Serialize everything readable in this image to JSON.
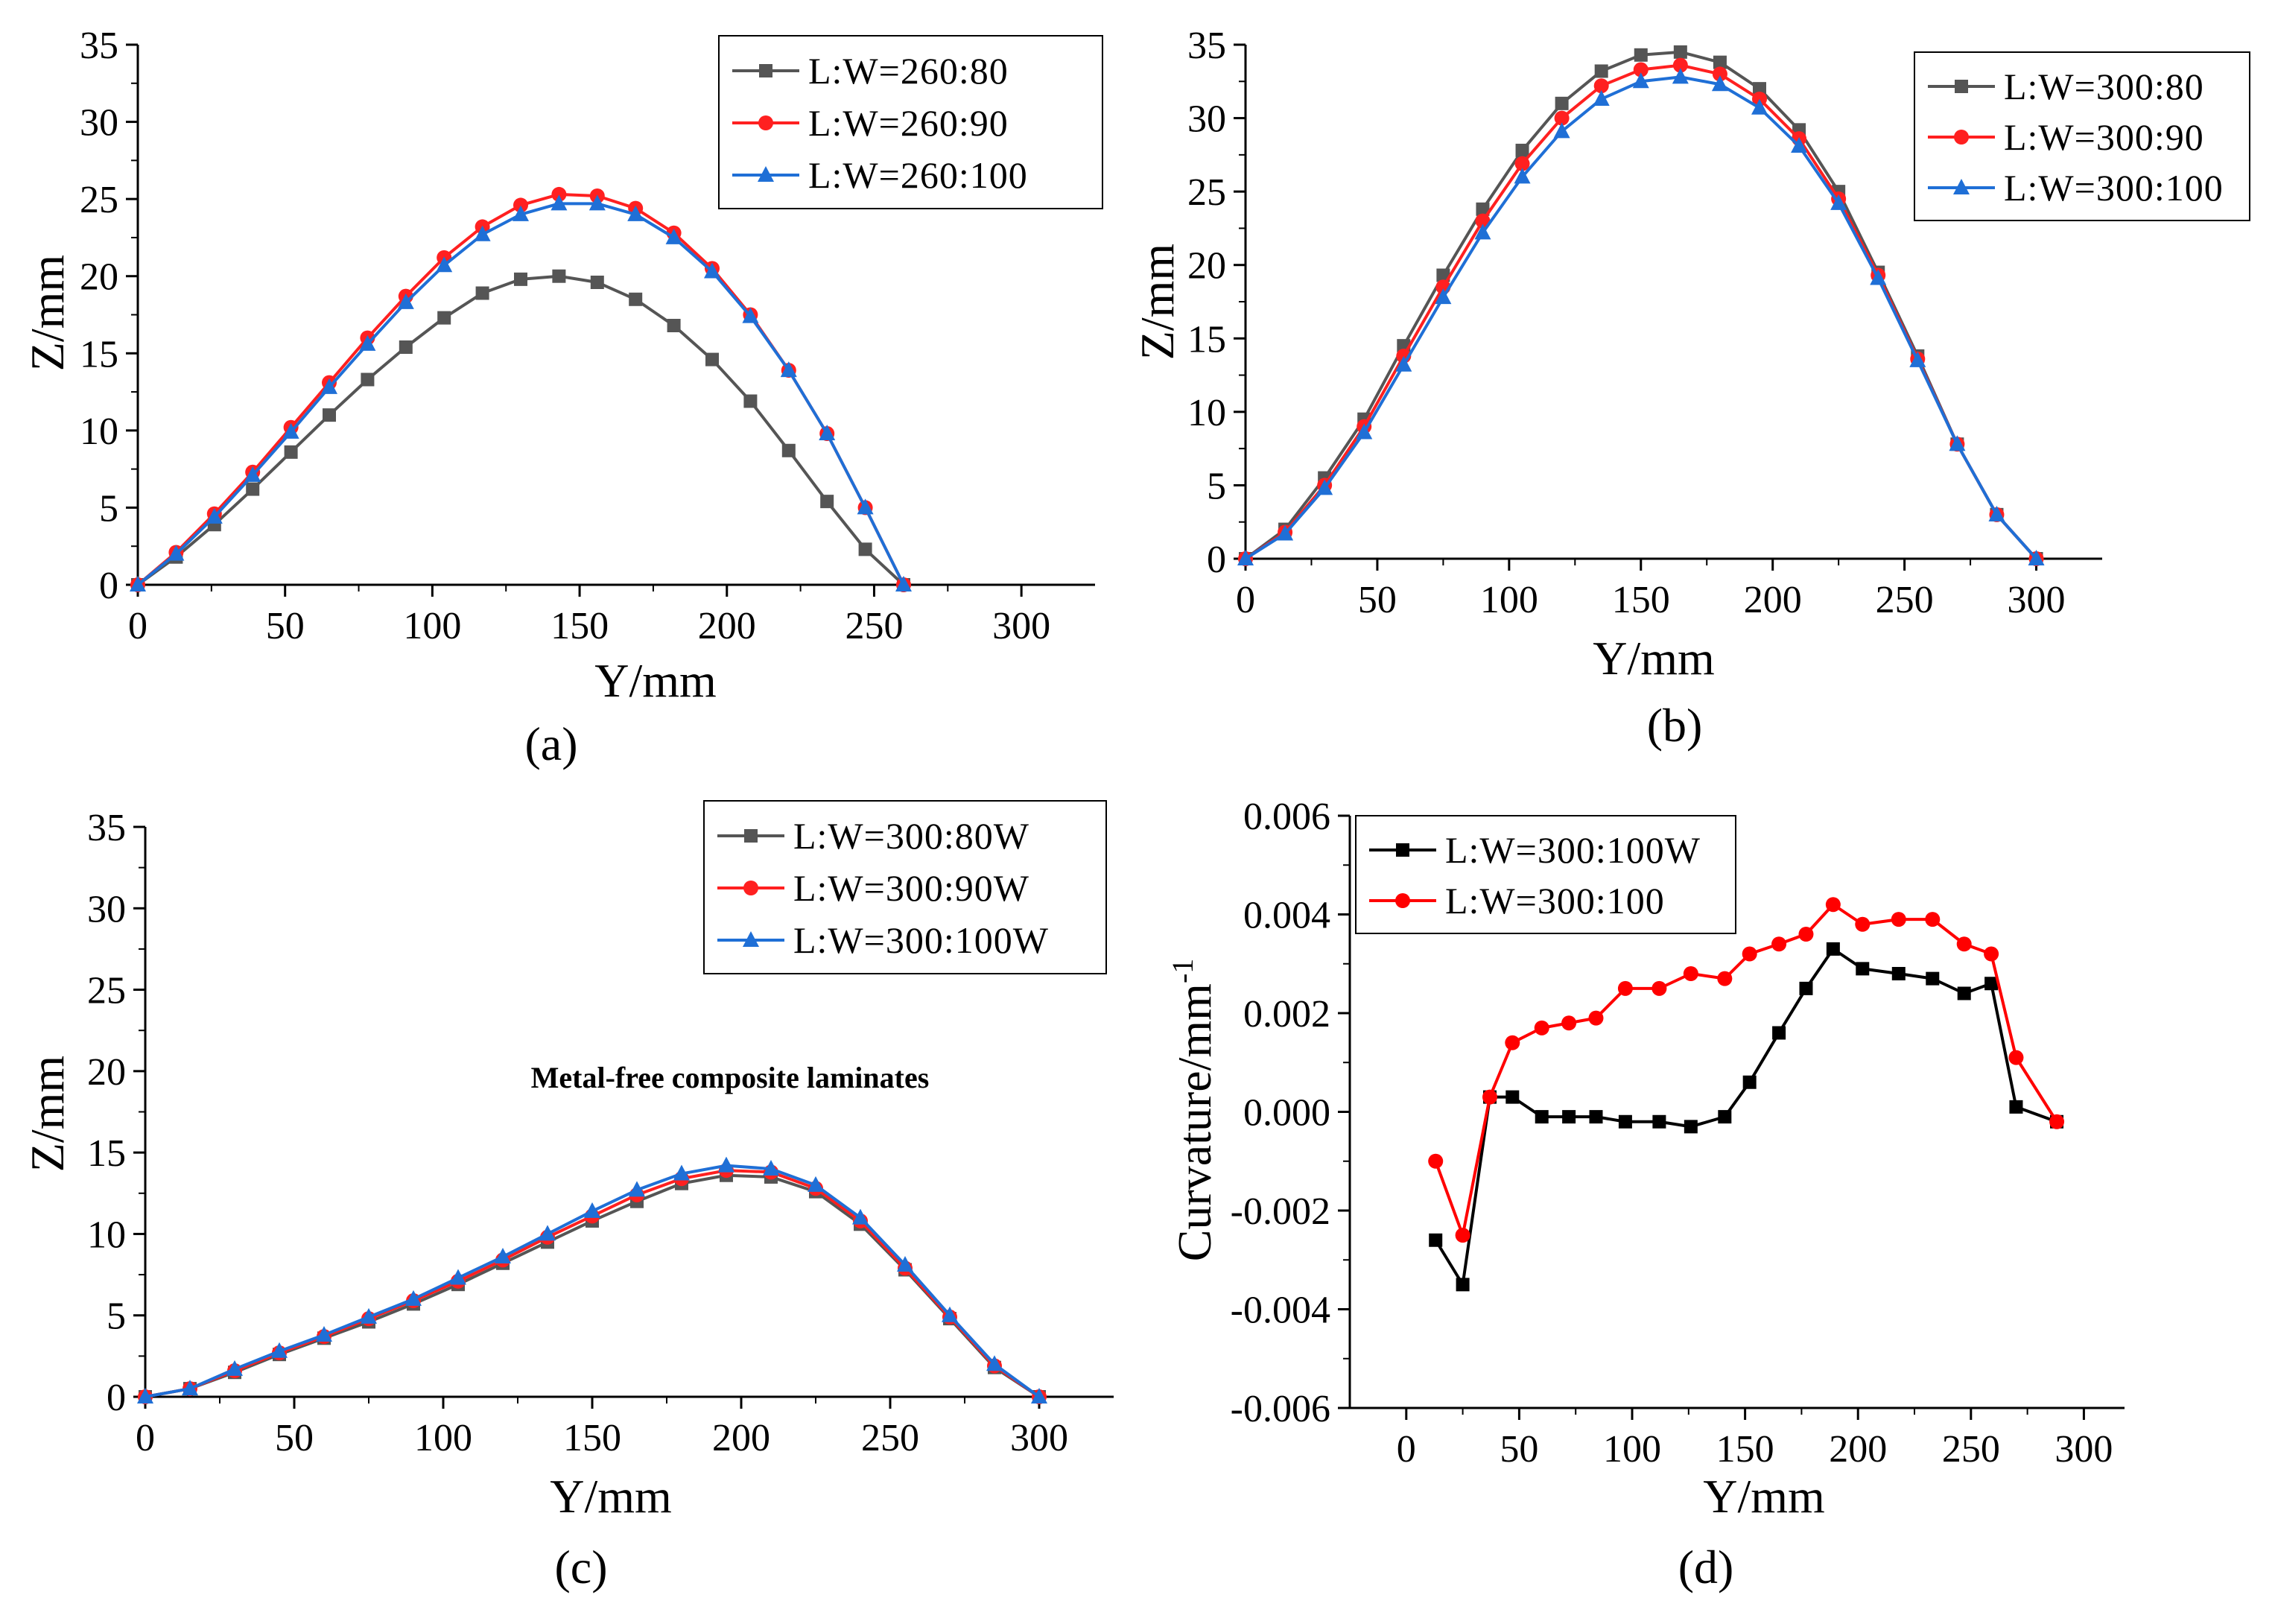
{
  "figure": {
    "panels": [
      {
        "caption": "(a)"
      },
      {
        "caption": "(b)"
      },
      {
        "caption": "(c)"
      },
      {
        "caption": "(d)"
      }
    ]
  },
  "chart_data": [
    {
      "type": "line",
      "caption": "(a)",
      "xlabel": "Y/mm",
      "ylabel": "Z/mm",
      "xlim": [
        0,
        325
      ],
      "ylim": [
        0,
        35
      ],
      "xticks": [
        0,
        50,
        100,
        150,
        200,
        250,
        300
      ],
      "yticks": [
        0,
        5,
        10,
        15,
        20,
        25,
        30,
        35
      ],
      "legend_position": "top-right",
      "series": [
        {
          "name": "L:W=260:80",
          "color": "#555555",
          "marker": "square",
          "x": [
            0,
            13,
            26,
            39,
            52,
            65,
            78,
            91,
            104,
            117,
            130,
            143,
            156,
            169,
            182,
            195,
            208,
            221,
            234,
            247,
            260
          ],
          "y": [
            0,
            1.8,
            3.9,
            6.2,
            8.6,
            11.0,
            13.3,
            15.4,
            17.3,
            18.9,
            19.8,
            20.0,
            19.6,
            18.5,
            16.8,
            14.6,
            11.9,
            8.7,
            5.4,
            2.3,
            0
          ]
        },
        {
          "name": "L:W=260:90",
          "color": "#ff2020",
          "marker": "circle",
          "x": [
            0,
            13,
            26,
            39,
            52,
            65,
            78,
            91,
            104,
            117,
            130,
            143,
            156,
            169,
            182,
            195,
            208,
            221,
            234,
            247,
            260
          ],
          "y": [
            0,
            2.1,
            4.6,
            7.3,
            10.2,
            13.1,
            16.0,
            18.7,
            21.2,
            23.2,
            24.6,
            25.3,
            25.2,
            24.4,
            22.8,
            20.5,
            17.5,
            13.9,
            9.8,
            5.0,
            0
          ]
        },
        {
          "name": "L:W=260:100",
          "color": "#1f6fd6",
          "marker": "triangle",
          "x": [
            0,
            13,
            26,
            39,
            52,
            65,
            78,
            91,
            104,
            117,
            130,
            143,
            156,
            169,
            182,
            195,
            208,
            221,
            234,
            247,
            260
          ],
          "y": [
            0,
            2.0,
            4.4,
            7.1,
            9.9,
            12.8,
            15.6,
            18.3,
            20.7,
            22.7,
            24.0,
            24.7,
            24.7,
            24.0,
            22.5,
            20.3,
            17.4,
            13.9,
            9.8,
            5.0,
            0
          ]
        }
      ]
    },
    {
      "type": "line",
      "caption": "(b)",
      "xlabel": "Y/mm",
      "ylabel": "Z/mm",
      "xlim": [
        0,
        325
      ],
      "ylim": [
        0,
        35
      ],
      "xticks": [
        0,
        50,
        100,
        150,
        200,
        250,
        300
      ],
      "yticks": [
        0,
        5,
        10,
        15,
        20,
        25,
        30,
        35
      ],
      "legend_position": "top-right",
      "series": [
        {
          "name": "L:W=300:80",
          "color": "#555555",
          "marker": "square",
          "x": [
            0,
            15,
            30,
            45,
            60,
            75,
            90,
            105,
            120,
            135,
            150,
            165,
            180,
            195,
            210,
            225,
            240,
            255,
            270,
            285,
            300
          ],
          "y": [
            0,
            2.0,
            5.5,
            9.5,
            14.5,
            19.3,
            23.8,
            27.8,
            31.0,
            33.2,
            34.3,
            34.5,
            33.8,
            32.0,
            29.2,
            25.0,
            19.5,
            13.8,
            7.8,
            3.0,
            0
          ]
        },
        {
          "name": "L:W=300:90",
          "color": "#ff2020",
          "marker": "circle",
          "x": [
            0,
            15,
            30,
            45,
            60,
            75,
            90,
            105,
            120,
            135,
            150,
            165,
            180,
            195,
            210,
            225,
            240,
            255,
            270,
            285,
            300
          ],
          "y": [
            0,
            1.8,
            5.0,
            9.0,
            13.8,
            18.5,
            23.0,
            26.9,
            30.0,
            32.2,
            33.3,
            33.6,
            33.0,
            31.3,
            28.6,
            24.5,
            19.3,
            13.6,
            7.8,
            3.0,
            0
          ]
        },
        {
          "name": "L:W=300:100",
          "color": "#1f6fd6",
          "marker": "triangle",
          "x": [
            0,
            15,
            30,
            45,
            60,
            75,
            90,
            105,
            120,
            135,
            150,
            165,
            180,
            195,
            210,
            225,
            240,
            255,
            270,
            285,
            300
          ],
          "y": [
            0,
            1.7,
            4.8,
            8.6,
            13.2,
            17.8,
            22.2,
            26.0,
            29.1,
            31.3,
            32.5,
            32.8,
            32.3,
            30.7,
            28.1,
            24.2,
            19.1,
            13.5,
            7.8,
            3.0,
            0
          ]
        }
      ]
    },
    {
      "type": "line",
      "caption": "(c)",
      "xlabel": "Y/mm",
      "ylabel": "Z/mm",
      "xlim": [
        0,
        325
      ],
      "ylim": [
        0,
        35
      ],
      "xticks": [
        0,
        50,
        100,
        150,
        200,
        250,
        300
      ],
      "yticks": [
        0,
        5,
        10,
        15,
        20,
        25,
        30,
        35
      ],
      "legend_position": "top-right",
      "annotation": "Metal-free composite laminates",
      "series": [
        {
          "name": "L:W=300:80W",
          "color": "#555555",
          "marker": "square",
          "x": [
            0,
            15,
            30,
            45,
            60,
            75,
            90,
            105,
            120,
            135,
            150,
            165,
            180,
            195,
            210,
            225,
            240,
            255,
            270,
            285,
            300
          ],
          "y": [
            0,
            0.5,
            1.5,
            2.6,
            3.6,
            4.6,
            5.7,
            6.9,
            8.2,
            9.5,
            10.8,
            12.0,
            13.1,
            13.6,
            13.5,
            12.6,
            10.6,
            7.8,
            4.8,
            1.8,
            0
          ]
        },
        {
          "name": "L:W=300:90W",
          "color": "#ff2020",
          "marker": "circle",
          "x": [
            0,
            15,
            30,
            45,
            60,
            75,
            90,
            105,
            120,
            135,
            150,
            165,
            180,
            195,
            210,
            225,
            240,
            255,
            270,
            285,
            300
          ],
          "y": [
            0,
            0.5,
            1.6,
            2.7,
            3.7,
            4.8,
            5.9,
            7.1,
            8.4,
            9.8,
            11.1,
            12.4,
            13.4,
            13.9,
            13.8,
            12.8,
            10.8,
            7.9,
            4.9,
            1.9,
            0
          ]
        },
        {
          "name": "L:W=300:100W",
          "color": "#1f6fd6",
          "marker": "triangle",
          "x": [
            0,
            15,
            30,
            45,
            60,
            75,
            90,
            105,
            120,
            135,
            150,
            165,
            180,
            195,
            210,
            225,
            240,
            255,
            270,
            285,
            300
          ],
          "y": [
            0,
            0.5,
            1.7,
            2.8,
            3.8,
            4.9,
            6.0,
            7.3,
            8.6,
            10.0,
            11.4,
            12.7,
            13.7,
            14.2,
            14.0,
            13.0,
            11.0,
            8.1,
            5.0,
            2.0,
            0
          ]
        }
      ]
    },
    {
      "type": "line",
      "caption": "(d)",
      "xlabel": "Y/mm",
      "ylabel": "Curvature/mm",
      "ylabel_sup": "-1",
      "xlim": [
        -25,
        318
      ],
      "ylim": [
        -0.006,
        0.006
      ],
      "xticks": [
        0,
        50,
        100,
        150,
        200,
        250,
        300
      ],
      "yticks": [
        -0.006,
        -0.004,
        -0.002,
        0.0,
        0.002,
        0.004,
        0.006
      ],
      "ytick_labels": [
        "-0.006",
        "-0.004",
        "-0.002",
        "0.000",
        "0.002",
        "0.004",
        "0.006"
      ],
      "legend_position": "top-left",
      "series": [
        {
          "name": "L:W=300:100W",
          "color": "#000000",
          "marker": "square",
          "x": [
            13,
            25,
            37,
            47,
            60,
            72,
            84,
            97,
            112,
            126,
            141,
            152,
            165,
            177,
            189,
            202,
            218,
            233,
            247,
            259,
            270,
            288
          ],
          "y": [
            -0.0026,
            -0.0035,
            0.0003,
            0.0003,
            -0.0001,
            -0.0001,
            -0.0001,
            -0.0002,
            -0.0002,
            -0.0003,
            -0.0001,
            0.0006,
            0.0016,
            0.0025,
            0.0033,
            0.0029,
            0.0028,
            0.0027,
            0.0024,
            0.0026,
            0.0001,
            -0.0002
          ]
        },
        {
          "name": "L:W=300:100",
          "color": "#ff0000",
          "marker": "circle",
          "x": [
            13,
            25,
            37,
            47,
            60,
            72,
            84,
            97,
            112,
            126,
            141,
            152,
            165,
            177,
            189,
            202,
            218,
            233,
            247,
            259,
            270,
            288
          ],
          "y": [
            -0.001,
            -0.0025,
            0.0003,
            0.0014,
            0.0017,
            0.0018,
            0.0019,
            0.0025,
            0.0025,
            0.0028,
            0.0027,
            0.0032,
            0.0034,
            0.0036,
            0.0042,
            0.0038,
            0.0039,
            0.0039,
            0.0034,
            0.0032,
            0.0011,
            -0.0002
          ]
        }
      ]
    }
  ]
}
